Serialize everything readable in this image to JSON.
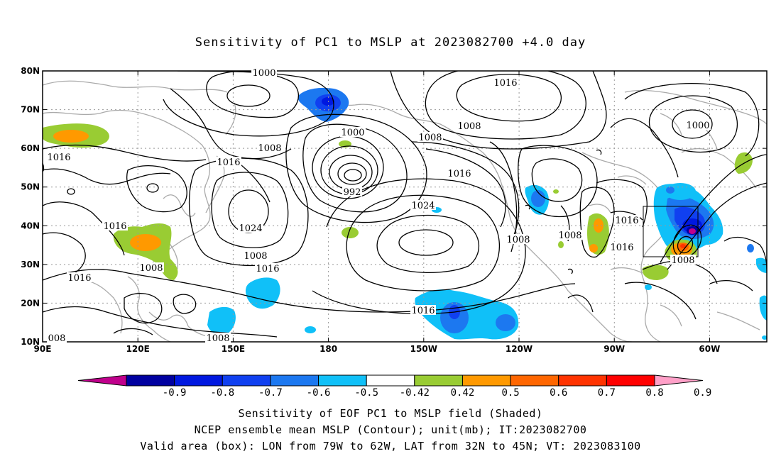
{
  "title": "Sensitivity of PC1 to MSLP at 2023082700 +4.0 day",
  "map": {
    "lat_ticks": [
      "80N",
      "70N",
      "60N",
      "50N",
      "40N",
      "30N",
      "20N",
      "10N"
    ],
    "lon_ticks": [
      "90E",
      "120E",
      "150E",
      "180",
      "150W",
      "120W",
      "90W",
      "60W"
    ],
    "contour_labels": [
      {
        "text": "1000"
      },
      {
        "text": "1016"
      },
      {
        "text": "1000"
      },
      {
        "text": "1008"
      },
      {
        "text": "1008"
      },
      {
        "text": "1000"
      },
      {
        "text": "1016"
      },
      {
        "text": "1008"
      },
      {
        "text": "1016"
      },
      {
        "text": "1016"
      },
      {
        "text": "992"
      },
      {
        "text": "1024"
      },
      {
        "text": "1024"
      },
      {
        "text": "1016"
      },
      {
        "text": "1008"
      },
      {
        "text": "1008"
      },
      {
        "text": "1016"
      },
      {
        "text": "1008"
      },
      {
        "text": "1016"
      },
      {
        "text": "1008"
      },
      {
        "text": "1016"
      },
      {
        "text": "1016"
      },
      {
        "text": "1016"
      },
      {
        "text": "1008"
      },
      {
        "text": "1008"
      },
      {
        "text": "008"
      }
    ],
    "box": {
      "lon_from": "79W",
      "lon_to": "62W",
      "lat_from": "32N",
      "lat_to": "45N"
    }
  },
  "colorbar": {
    "labels": [
      "-0.9",
      "-0.8",
      "-0.7",
      "-0.6",
      "-0.5",
      "-0.42",
      "0.42",
      "0.5",
      "0.6",
      "0.7",
      "0.8",
      "0.9"
    ],
    "colors": [
      "#c0008c",
      "#0000a0",
      "#0018e0",
      "#1040f0",
      "#1c78f0",
      "#10c0f8",
      "#ffffff",
      "#99cc33",
      "#ff9900",
      "#ff6600",
      "#ff3300",
      "#ff0000",
      "#ffa0c8"
    ]
  },
  "captions": {
    "line1": "Sensitivity of EOF PC1 to MSLP field (Shaded)",
    "line2": "NCEP ensemble mean MSLP (Contour); unit(mb); IT:2023082700",
    "line3": "Valid area (box): LON from 79W to 62W, LAT from 32N to 45N; VT: 2023083100"
  }
}
